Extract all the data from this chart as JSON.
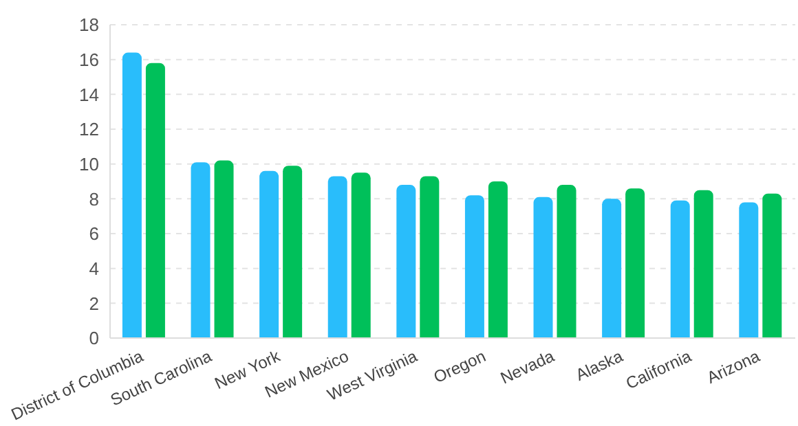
{
  "chart_data": {
    "type": "bar",
    "categories": [
      "District of Columbia",
      "South Carolina",
      "New York",
      "New Mexico",
      "West Virginia",
      "Oregon",
      "Nevada",
      "Alaska",
      "California",
      "Arizona"
    ],
    "series": [
      {
        "color": "#29bdfb",
        "values": [
          16.4,
          10.1,
          9.6,
          9.3,
          8.8,
          8.2,
          8.1,
          8.0,
          7.9,
          7.8
        ]
      },
      {
        "color": "#00c05a",
        "values": [
          15.8,
          10.2,
          9.9,
          9.5,
          9.3,
          9.0,
          8.8,
          8.6,
          8.5,
          8.3
        ]
      }
    ],
    "ylim": [
      0,
      18
    ],
    "yticks": [
      0,
      2,
      4,
      6,
      8,
      10,
      12,
      14,
      16,
      18
    ],
    "grid": "y",
    "legend": false
  }
}
